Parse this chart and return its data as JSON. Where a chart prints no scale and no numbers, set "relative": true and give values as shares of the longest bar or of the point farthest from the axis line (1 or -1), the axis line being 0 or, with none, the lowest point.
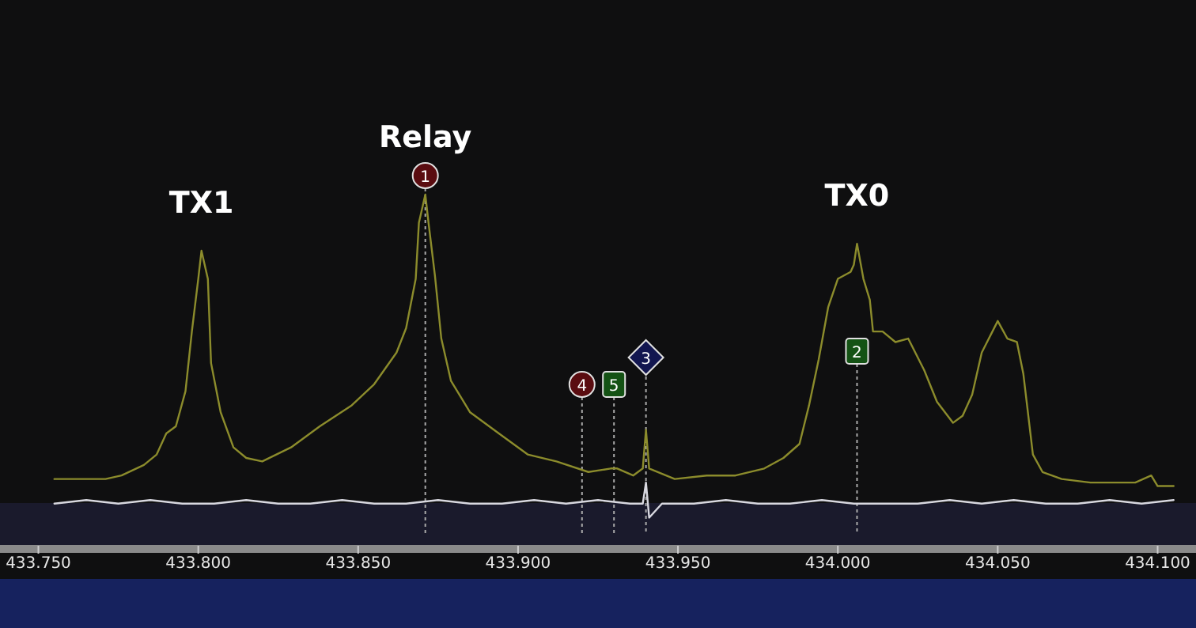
{
  "chart_data": {
    "type": "line",
    "relative": true,
    "xlim": [
      433.738,
      434.112
    ],
    "xticks": [
      {
        "value": 433.75,
        "label": "433.750"
      },
      {
        "value": 433.8,
        "label": "433.800"
      },
      {
        "value": 433.85,
        "label": "433.850"
      },
      {
        "value": 433.9,
        "label": "433.900"
      },
      {
        "value": 433.95,
        "label": "433.950"
      },
      {
        "value": 434.0,
        "label": "434.000"
      },
      {
        "value": 434.05,
        "label": "434.050"
      },
      {
        "value": 434.1,
        "label": "434.100"
      }
    ],
    "series": [
      {
        "color": "#8c8c2c",
        "x": [
          433.755,
          433.771,
          433.776,
          433.783,
          433.787,
          433.79,
          433.793,
          433.796,
          433.798,
          433.8,
          433.801,
          433.803,
          433.804,
          433.807,
          433.811,
          433.815,
          433.82,
          433.829,
          433.838,
          433.848,
          433.855,
          433.862,
          433.865,
          433.868,
          433.869,
          433.871,
          433.872,
          433.874,
          433.876,
          433.879,
          433.885,
          433.894,
          433.903,
          433.912,
          433.922,
          433.929,
          433.931,
          433.936,
          433.939,
          433.94,
          433.941,
          433.949,
          433.959,
          433.968,
          433.977,
          433.983,
          433.988,
          433.991,
          433.994,
          433.997,
          434.0,
          434.004,
          434.005,
          434.006,
          434.008,
          434.01,
          434.011,
          434.014,
          434.018,
          434.022,
          434.027,
          434.031,
          434.036,
          434.039,
          434.042,
          434.045,
          434.05,
          434.053,
          434.056,
          434.058,
          434.061,
          434.064,
          434.07,
          434.079,
          434.093,
          434.098,
          434.1,
          434.105
        ],
        "values": [
          0.19,
          0.19,
          0.2,
          0.23,
          0.26,
          0.32,
          0.34,
          0.44,
          0.61,
          0.76,
          0.84,
          0.76,
          0.52,
          0.38,
          0.28,
          0.25,
          0.24,
          0.28,
          0.34,
          0.4,
          0.46,
          0.55,
          0.62,
          0.76,
          0.92,
          1.0,
          0.92,
          0.77,
          0.59,
          0.47,
          0.38,
          0.32,
          0.26,
          0.24,
          0.21,
          0.22,
          0.22,
          0.2,
          0.22,
          0.33,
          0.22,
          0.19,
          0.2,
          0.2,
          0.22,
          0.25,
          0.29,
          0.4,
          0.53,
          0.68,
          0.76,
          0.78,
          0.8,
          0.86,
          0.76,
          0.7,
          0.61,
          0.61,
          0.58,
          0.59,
          0.5,
          0.41,
          0.35,
          0.37,
          0.43,
          0.55,
          0.64,
          0.59,
          0.58,
          0.49,
          0.26,
          0.21,
          0.19,
          0.18,
          0.18,
          0.2,
          0.17,
          0.17
        ]
      },
      {
        "color": "#d8d8e0",
        "x": [
          433.755,
          433.765,
          433.775,
          433.785,
          433.795,
          433.805,
          433.815,
          433.825,
          433.835,
          433.845,
          433.855,
          433.865,
          433.875,
          433.885,
          433.895,
          433.905,
          433.915,
          433.925,
          433.935,
          433.939,
          433.94,
          433.941,
          433.945,
          433.955,
          433.965,
          433.975,
          433.985,
          433.995,
          434.005,
          434.015,
          434.025,
          434.035,
          434.045,
          434.055,
          434.065,
          434.075,
          434.085,
          434.095,
          434.105
        ],
        "values": [
          0.12,
          0.13,
          0.12,
          0.13,
          0.12,
          0.12,
          0.13,
          0.12,
          0.12,
          0.13,
          0.12,
          0.12,
          0.13,
          0.12,
          0.12,
          0.13,
          0.12,
          0.13,
          0.12,
          0.12,
          0.18,
          0.08,
          0.12,
          0.12,
          0.13,
          0.12,
          0.12,
          0.13,
          0.12,
          0.12,
          0.12,
          0.13,
          0.12,
          0.13,
          0.12,
          0.12,
          0.13,
          0.12,
          0.13
        ]
      }
    ],
    "ref_lines": [
      {
        "axis": "x",
        "value": 433.871,
        "color": "#aaaaaa",
        "line_style": "dotted"
      },
      {
        "axis": "x",
        "value": 433.92,
        "color": "#aaaaaa",
        "line_style": "dotted"
      },
      {
        "axis": "x",
        "value": 433.93,
        "color": "#aaaaaa",
        "line_style": "dotted"
      },
      {
        "axis": "x",
        "value": 433.94,
        "color": "#aaaaaa",
        "line_style": "dotted"
      },
      {
        "axis": "x",
        "value": 434.006,
        "color": "#aaaaaa",
        "line_style": "dotted"
      }
    ],
    "annotations": [
      {
        "text": "TX1",
        "x": 433.801,
        "y": 0.84
      },
      {
        "text": "Relay",
        "x": 433.871,
        "y": 1.0
      },
      {
        "text": "TX0",
        "x": 434.006,
        "y": 0.86
      },
      "1",
      "4",
      "5",
      "3",
      "2"
    ]
  }
}
